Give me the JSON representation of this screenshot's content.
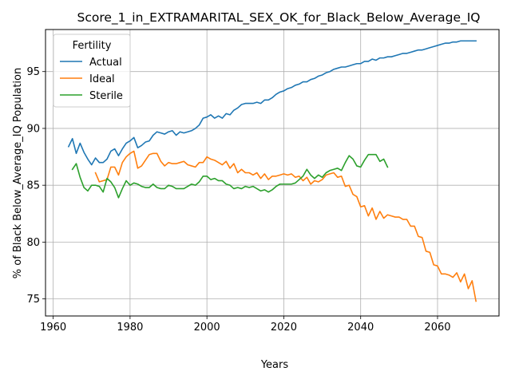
{
  "chart_data": {
    "type": "line",
    "title": "Score_1_in_EXTRAMARITAL_SEX_OK_for_Black_Below_Average_IQ",
    "xlabel": "Years",
    "ylabel": "% of Black Below_Average_IQ Population",
    "xlim": [
      1958,
      2076
    ],
    "ylim": [
      73.5,
      98.7
    ],
    "x_ticks": [
      1960,
      1980,
      2000,
      2020,
      2040,
      2060
    ],
    "y_ticks": [
      75,
      80,
      85,
      90,
      95
    ],
    "grid": true,
    "legend": {
      "title": "Fertility",
      "position": "top-left"
    },
    "series": [
      {
        "name": "Actual",
        "color": "#1f77b4",
        "x": [
          1964,
          1965,
          1966,
          1967,
          1968,
          1969,
          1970,
          1971,
          1972,
          1973,
          1974,
          1975,
          1976,
          1977,
          1978,
          1979,
          1980,
          1981,
          1982,
          1983,
          1984,
          1985,
          1986,
          1987,
          1988,
          1989,
          1990,
          1991,
          1992,
          1993,
          1994,
          1995,
          1996,
          1997,
          1998,
          1999,
          2000,
          2001,
          2002,
          2003,
          2004,
          2005,
          2006,
          2007,
          2008,
          2009,
          2010,
          2011,
          2012,
          2013,
          2014,
          2015,
          2016,
          2017,
          2018,
          2019,
          2020,
          2021,
          2022,
          2023,
          2024,
          2025,
          2026,
          2027,
          2028,
          2029,
          2030,
          2031,
          2032,
          2033,
          2034,
          2035,
          2036,
          2037,
          2038,
          2039,
          2040,
          2041,
          2042,
          2043,
          2044,
          2045,
          2046,
          2047,
          2048,
          2049,
          2050,
          2051,
          2052,
          2053,
          2054,
          2055,
          2056,
          2057,
          2058,
          2059,
          2060,
          2061,
          2062,
          2063,
          2064,
          2065,
          2066,
          2067,
          2068,
          2069,
          2070
        ],
        "values": [
          88.4,
          89.1,
          87.8,
          88.7,
          87.9,
          87.3,
          86.8,
          87.4,
          87.0,
          87.0,
          87.3,
          88.0,
          88.2,
          87.6,
          88.2,
          88.7,
          88.9,
          89.2,
          88.3,
          88.5,
          88.8,
          88.9,
          89.4,
          89.7,
          89.6,
          89.5,
          89.7,
          89.8,
          89.4,
          89.7,
          89.6,
          89.7,
          89.8,
          90.0,
          90.3,
          90.9,
          91.0,
          91.2,
          90.9,
          91.1,
          90.9,
          91.3,
          91.2,
          91.6,
          91.8,
          92.1,
          92.2,
          92.2,
          92.2,
          92.3,
          92.2,
          92.5,
          92.5,
          92.7,
          93.0,
          93.2,
          93.3,
          93.5,
          93.6,
          93.8,
          93.9,
          94.1,
          94.1,
          94.3,
          94.4,
          94.6,
          94.7,
          94.9,
          95.0,
          95.2,
          95.3,
          95.4,
          95.4,
          95.5,
          95.6,
          95.7,
          95.7,
          95.9,
          95.9,
          96.1,
          96.0,
          96.2,
          96.2,
          96.3,
          96.3,
          96.4,
          96.5,
          96.6,
          96.6,
          96.7,
          96.8,
          96.9,
          96.9,
          97.0,
          97.1,
          97.2,
          97.3,
          97.4,
          97.5,
          97.5,
          97.6,
          97.6,
          97.7,
          97.7,
          97.7,
          97.7,
          97.7
        ]
      },
      {
        "name": "Ideal",
        "color": "#ff7f0e",
        "x": [
          1971,
          1972,
          1973,
          1974,
          1975,
          1976,
          1977,
          1978,
          1979,
          1980,
          1981,
          1982,
          1983,
          1984,
          1985,
          1986,
          1987,
          1988,
          1989,
          1990,
          1991,
          1992,
          1993,
          1994,
          1995,
          1996,
          1997,
          1998,
          1999,
          2000,
          2001,
          2002,
          2003,
          2004,
          2005,
          2006,
          2007,
          2008,
          2009,
          2010,
          2011,
          2012,
          2013,
          2014,
          2015,
          2016,
          2017,
          2018,
          2019,
          2020,
          2021,
          2022,
          2023,
          2024,
          2025,
          2026,
          2027,
          2028,
          2029,
          2030,
          2031,
          2032,
          2033,
          2034,
          2035,
          2036,
          2037,
          2038,
          2039,
          2040,
          2041,
          2042,
          2043,
          2044,
          2045,
          2046,
          2047,
          2048,
          2049,
          2050,
          2051,
          2052,
          2053,
          2054,
          2055,
          2056,
          2057,
          2058,
          2059,
          2060,
          2061,
          2062,
          2063,
          2064,
          2065,
          2066,
          2067,
          2068,
          2069,
          2070
        ],
        "values": [
          86.1,
          85.3,
          85.4,
          85.5,
          86.6,
          86.6,
          85.9,
          87.0,
          87.5,
          87.8,
          88.0,
          86.5,
          86.7,
          87.2,
          87.7,
          87.8,
          87.8,
          87.1,
          86.7,
          87.0,
          86.9,
          86.9,
          87.0,
          87.1,
          86.8,
          86.7,
          86.6,
          87.0,
          87.0,
          87.5,
          87.3,
          87.2,
          87.0,
          86.8,
          87.1,
          86.5,
          86.9,
          86.1,
          86.4,
          86.1,
          86.1,
          85.9,
          86.1,
          85.6,
          86.0,
          85.5,
          85.8,
          85.8,
          85.9,
          86.0,
          85.9,
          86.0,
          85.7,
          85.8,
          85.4,
          85.7,
          85.1,
          85.4,
          85.3,
          85.5,
          85.9,
          86.0,
          86.1,
          85.7,
          85.8,
          84.9,
          85.0,
          84.2,
          84.0,
          83.1,
          83.2,
          82.3,
          83.0,
          82.0,
          82.7,
          82.1,
          82.4,
          82.3,
          82.2,
          82.2,
          82.0,
          82.0,
          81.4,
          81.4,
          80.5,
          80.4,
          79.2,
          79.1,
          78.0,
          77.9,
          77.2,
          77.2,
          77.1,
          76.9,
          77.3,
          76.5,
          77.2,
          75.9,
          76.6,
          74.8
        ]
      },
      {
        "name": "Sterile",
        "color": "#2ca02c",
        "x": [
          1965,
          1966,
          1967,
          1968,
          1969,
          1970,
          1971,
          1972,
          1973,
          1974,
          1975,
          1976,
          1977,
          1978,
          1979,
          1980,
          1981,
          1982,
          1983,
          1984,
          1985,
          1986,
          1987,
          1988,
          1989,
          1990,
          1991,
          1992,
          1993,
          1994,
          1995,
          1996,
          1997,
          1998,
          1999,
          2000,
          2001,
          2002,
          2003,
          2004,
          2005,
          2006,
          2007,
          2008,
          2009,
          2010,
          2011,
          2012,
          2013,
          2014,
          2015,
          2016,
          2017,
          2018,
          2019,
          2020,
          2021,
          2022,
          2023,
          2024,
          2025,
          2026,
          2027,
          2028,
          2029,
          2030,
          2031,
          2032,
          2033,
          2034,
          2035,
          2036,
          2037,
          2038,
          2039,
          2040,
          2041,
          2042,
          2043,
          2044,
          2045,
          2046,
          2047
        ],
        "values": [
          86.4,
          86.9,
          85.7,
          84.8,
          84.5,
          85.0,
          85.0,
          84.9,
          84.4,
          85.6,
          85.3,
          84.8,
          83.9,
          84.7,
          85.4,
          85.0,
          85.2,
          85.1,
          84.9,
          84.8,
          84.8,
          85.1,
          84.8,
          84.7,
          84.7,
          85.0,
          84.9,
          84.7,
          84.7,
          84.7,
          84.9,
          85.1,
          85.0,
          85.3,
          85.8,
          85.8,
          85.5,
          85.6,
          85.4,
          85.4,
          85.1,
          85.0,
          84.7,
          84.8,
          84.7,
          84.9,
          84.8,
          84.9,
          84.7,
          84.5,
          84.6,
          84.4,
          84.6,
          84.9,
          85.1,
          85.1,
          85.1,
          85.1,
          85.2,
          85.5,
          85.8,
          86.4,
          85.9,
          85.6,
          85.9,
          85.7,
          86.1,
          86.3,
          86.4,
          86.5,
          86.3,
          87.0,
          87.6,
          87.3,
          86.7,
          86.6,
          87.2,
          87.7,
          87.7,
          87.7,
          87.1,
          87.3,
          86.6
        ]
      }
    ]
  }
}
